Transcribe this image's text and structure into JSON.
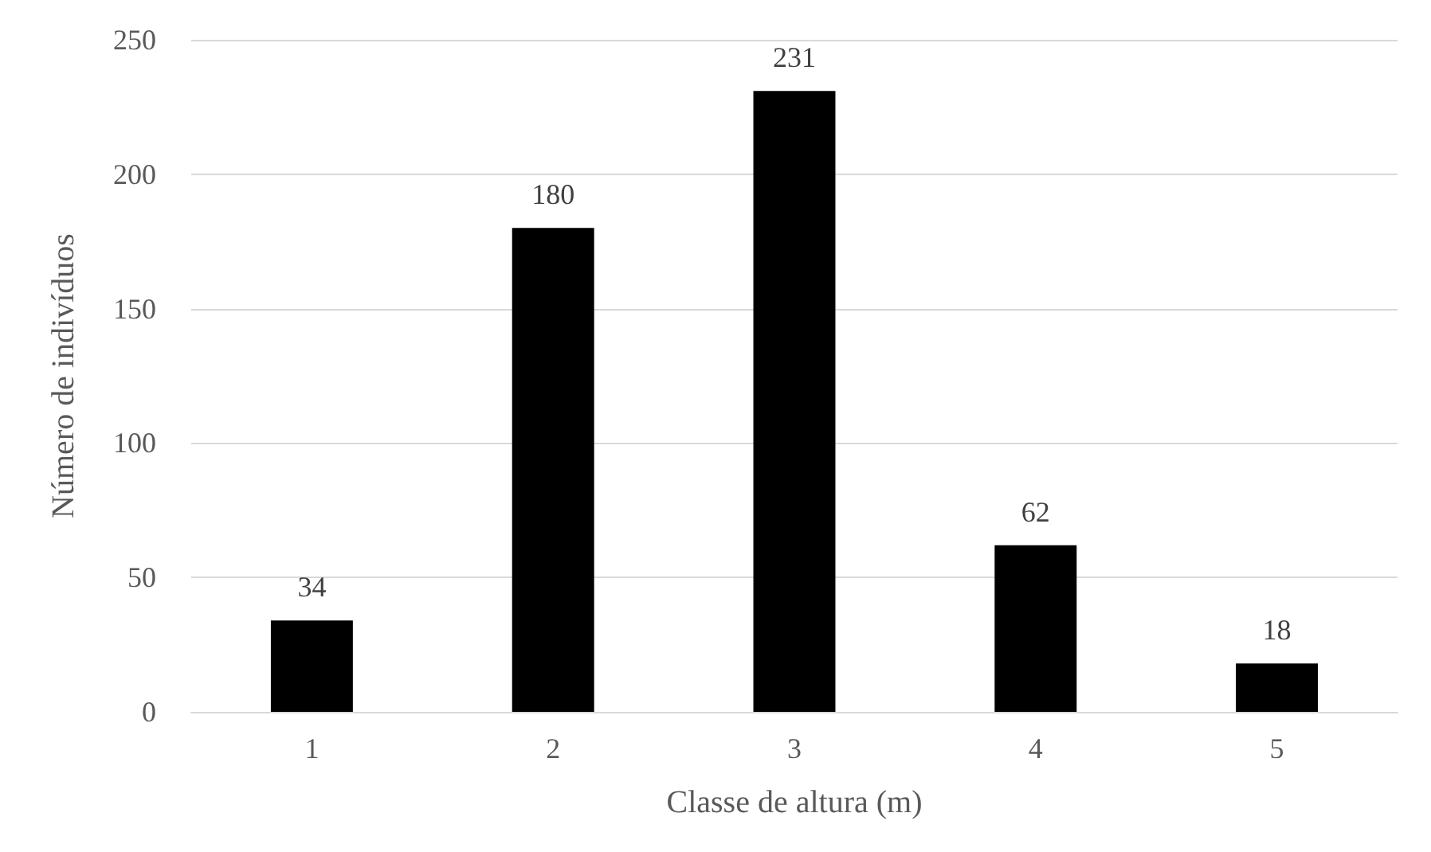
{
  "chart_data": {
    "type": "bar",
    "xlabel": "Classe de altura (m)",
    "ylabel": "Número de indivíduos",
    "categories": [
      "1",
      "2",
      "3",
      "4",
      "5"
    ],
    "values": [
      34,
      180,
      231,
      62,
      18
    ],
    "color": "#000000",
    "ylim": [
      0,
      250
    ],
    "yticks": [
      0,
      50,
      100,
      150,
      200,
      250
    ],
    "grid": "y",
    "data_labels": true
  }
}
